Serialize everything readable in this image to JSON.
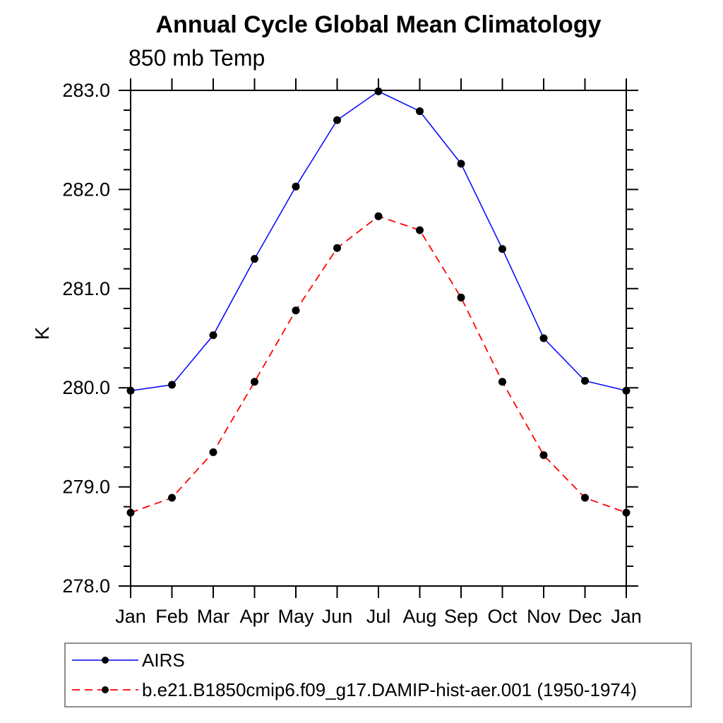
{
  "chart_data": {
    "type": "line",
    "title": "Annual Cycle Global Mean Climatology",
    "subtitle": "850 mb Temp",
    "ylabel": "K",
    "xlabel": "",
    "x_tick_labels": [
      "Jan",
      "Feb",
      "Mar",
      "Apr",
      "May",
      "Jun",
      "Jul",
      "Aug",
      "Sep",
      "Oct",
      "Nov",
      "Dec",
      "Jan"
    ],
    "ylim": [
      278.0,
      283.0
    ],
    "y_major_ticks": [
      278.0,
      279.0,
      280.0,
      281.0,
      282.0,
      283.0
    ],
    "y_tick_labels": [
      "278.0",
      "279.0",
      "280.0",
      "281.0",
      "282.0",
      "283.0"
    ],
    "y_minor_tick_step": 0.2,
    "grid": false,
    "legend_position": "bottom-left",
    "axis_color": "#000000",
    "marker_shape": "filled-circle",
    "series": [
      {
        "name": "AIRS",
        "line_color": "#0000ff",
        "line_style": "solid",
        "marker_color": "#000000",
        "values": [
          279.97,
          280.03,
          280.53,
          281.3,
          282.03,
          282.7,
          282.99,
          282.79,
          282.26,
          281.4,
          280.5,
          280.07,
          279.97
        ]
      },
      {
        "name": "b.e21.B1850cmip6.f09_g17.DAMIP-hist-aer.001 (1950-1974)",
        "line_color": "#ff0000",
        "line_style": "dashed",
        "marker_color": "#000000",
        "values": [
          278.74,
          278.89,
          279.35,
          280.06,
          280.78,
          281.41,
          281.73,
          281.59,
          280.91,
          280.06,
          279.32,
          278.89,
          278.74
        ]
      }
    ]
  }
}
